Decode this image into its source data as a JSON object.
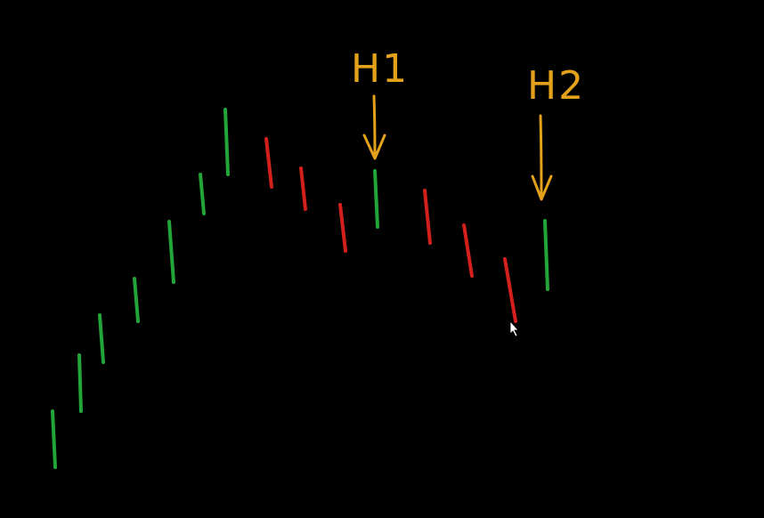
{
  "colors": {
    "background": "#000000",
    "up_bar": "#22a63a",
    "down_bar": "#d4201c",
    "annotation": "#e3a21a",
    "cursor": "#ffffff"
  },
  "bars": [
    {
      "direction": "up"
    },
    {
      "direction": "up"
    },
    {
      "direction": "up"
    },
    {
      "direction": "up"
    },
    {
      "direction": "up"
    },
    {
      "direction": "up"
    },
    {
      "direction": "up"
    },
    {
      "direction": "down"
    },
    {
      "direction": "down"
    },
    {
      "direction": "down"
    },
    {
      "direction": "up"
    },
    {
      "direction": "down"
    },
    {
      "direction": "down"
    },
    {
      "direction": "down"
    },
    {
      "direction": "up"
    }
  ],
  "annotations": [
    {
      "text": "H1",
      "target_bar": 10
    },
    {
      "text": "H2",
      "target_bar": 14
    }
  ],
  "cursor_icon": "mouse-pointer-icon"
}
